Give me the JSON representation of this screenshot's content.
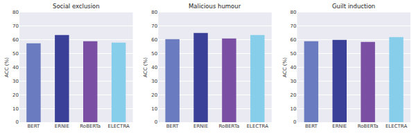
{
  "chart_data": [
    {
      "type": "bar",
      "title": "Social exclusion",
      "ylabel": "ACC (%)",
      "categories": [
        "BERT",
        "ERNIE",
        "RoBERTa",
        "ELECTRA"
      ],
      "values": [
        57.5,
        63.5,
        59,
        58
      ],
      "colors": [
        "#6b7bbf",
        "#3a3f98",
        "#7a4ea3",
        "#87ceeb"
      ],
      "ylim": [
        0,
        80
      ],
      "yticks": [
        0,
        10,
        20,
        30,
        40,
        50,
        60,
        70,
        80
      ],
      "grid": true
    },
    {
      "type": "bar",
      "title": "Malicious humour",
      "ylabel": "ACC (%)",
      "categories": [
        "BERT",
        "ERNIE",
        "RoBERTa",
        "ELECTRA"
      ],
      "values": [
        60.5,
        65,
        61,
        63.5
      ],
      "colors": [
        "#6b7bbf",
        "#3a3f98",
        "#7a4ea3",
        "#87ceeb"
      ],
      "ylim": [
        0,
        80
      ],
      "yticks": [
        0,
        10,
        20,
        30,
        40,
        50,
        60,
        70,
        80
      ],
      "grid": true
    },
    {
      "type": "bar",
      "title": "Guilt induction",
      "ylabel": "ACC (%)",
      "categories": [
        "BERT",
        "ERNIE",
        "RoBERTa",
        "ELECTRA"
      ],
      "values": [
        59,
        60,
        58.5,
        62
      ],
      "colors": [
        "#6b7bbf",
        "#3a3f98",
        "#7a4ea3",
        "#87ceeb"
      ],
      "ylim": [
        0,
        80
      ],
      "yticks": [
        0,
        10,
        20,
        30,
        40,
        50,
        60,
        70,
        80
      ],
      "grid": true
    }
  ]
}
